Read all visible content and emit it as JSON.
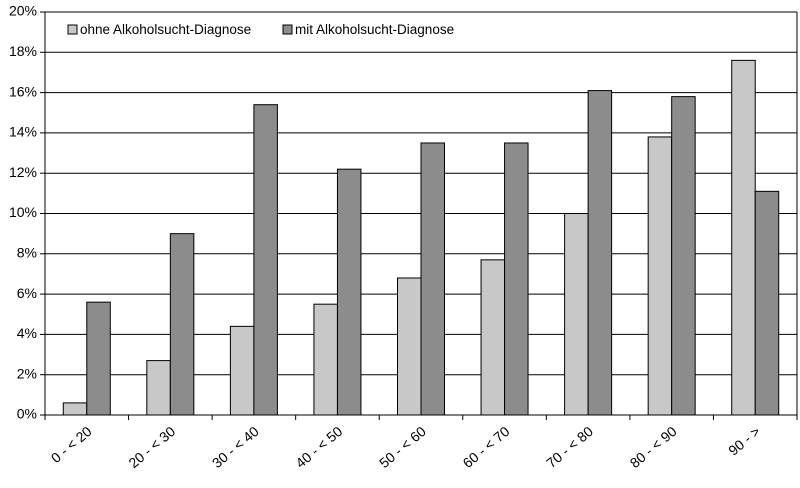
{
  "chart_data": {
    "type": "bar",
    "title": "",
    "xlabel": "",
    "ylabel": "",
    "categories": [
      "0 - < 20",
      "20 - < 30",
      "30 - < 40",
      "40 - < 50",
      "50 - < 60",
      "60 - < 70",
      "70 - < 80",
      "80 - < 90",
      "90 - >"
    ],
    "series": [
      {
        "name": "ohne Alkoholsucht-Diagnose",
        "color": "#c8c8c8",
        "values": [
          0.6,
          2.7,
          4.4,
          5.5,
          6.8,
          7.7,
          10.0,
          13.8,
          17.6
        ]
      },
      {
        "name": "mit Alkoholsucht-Diagnose",
        "color": "#8c8c8c",
        "values": [
          5.6,
          9.0,
          15.4,
          12.2,
          13.5,
          13.5,
          16.1,
          15.8,
          11.1
        ]
      }
    ],
    "ylim": [
      0,
      20
    ],
    "yticks": [
      0,
      2,
      4,
      6,
      8,
      10,
      12,
      14,
      16,
      18,
      20
    ],
    "ytick_labels": [
      "0%",
      "2%",
      "4%",
      "6%",
      "8%",
      "10%",
      "12%",
      "14%",
      "16%",
      "18%",
      "20%"
    ],
    "grid": true,
    "legend_position": "top-left"
  }
}
